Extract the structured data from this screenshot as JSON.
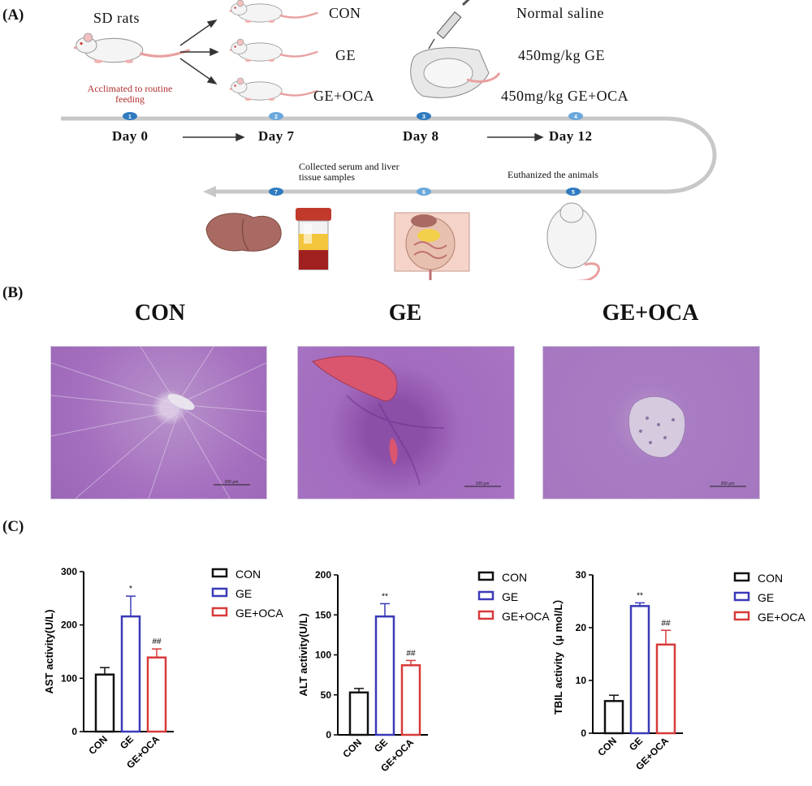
{
  "panel_labels": {
    "a": "(A)",
    "b": "(B)",
    "c": "(C)"
  },
  "timeline": {
    "source_animals": "SD rats",
    "acclimation_note": "Acclimated to routine feeding",
    "groups": [
      "CON",
      "GE",
      "GE+OCA"
    ],
    "treatments": [
      "Normal saline",
      "450mg/kg GE",
      "450mg/kg GE+OCA"
    ],
    "days": [
      "Day 0",
      "Day 7",
      "Day 8",
      "Day 12"
    ],
    "steps": [
      "1",
      "2",
      "3",
      "4",
      "5",
      "6",
      "7"
    ],
    "note_collect": "Collected serum and liver tissue samples",
    "note_euthanize": "Euthanized the animals"
  },
  "histology": {
    "titles": [
      "CON",
      "GE",
      "GE+OCA"
    ],
    "scale_bars": [
      "200 μm",
      "100 μm",
      "200 μm"
    ]
  },
  "legend": [
    "CON",
    "GE",
    "GE+OCA"
  ],
  "colors": {
    "con": "#111111",
    "ge": "#3a3ab8",
    "oca": "#d83a3a",
    "timeline": "#c8c8c8",
    "step": "#2f7ac0"
  },
  "chart_data": [
    {
      "type": "bar",
      "title": "",
      "ylabel": "AST activity(U/L)",
      "xlabel": "",
      "categories": [
        "CON",
        "GE",
        "GE+OCA"
      ],
      "values": [
        107,
        216,
        139
      ],
      "errors": [
        13,
        38,
        16
      ],
      "annotations": [
        "",
        "*",
        "##"
      ],
      "ylim": [
        0,
        300
      ],
      "yticks": [
        0,
        100,
        200,
        300
      ]
    },
    {
      "type": "bar",
      "title": "",
      "ylabel": "ALT activity(U/L)",
      "xlabel": "",
      "categories": [
        "CON",
        "GE",
        "GE+OCA"
      ],
      "values": [
        53,
        148,
        87
      ],
      "errors": [
        5,
        16,
        6
      ],
      "annotations": [
        "",
        "**",
        "##"
      ],
      "ylim": [
        0,
        200
      ],
      "yticks": [
        0,
        50,
        100,
        150,
        200
      ]
    },
    {
      "type": "bar",
      "title": "",
      "ylabel": "TBIL activity（μ mol/L）",
      "xlabel": "",
      "categories": [
        "CON",
        "GE",
        "GE+OCA"
      ],
      "values": [
        6.1,
        24.1,
        16.8
      ],
      "errors": [
        1.1,
        0.6,
        2.7
      ],
      "annotations": [
        "",
        "**",
        "##"
      ],
      "ylim": [
        0,
        30
      ],
      "yticks": [
        0,
        10,
        20,
        30
      ]
    }
  ]
}
